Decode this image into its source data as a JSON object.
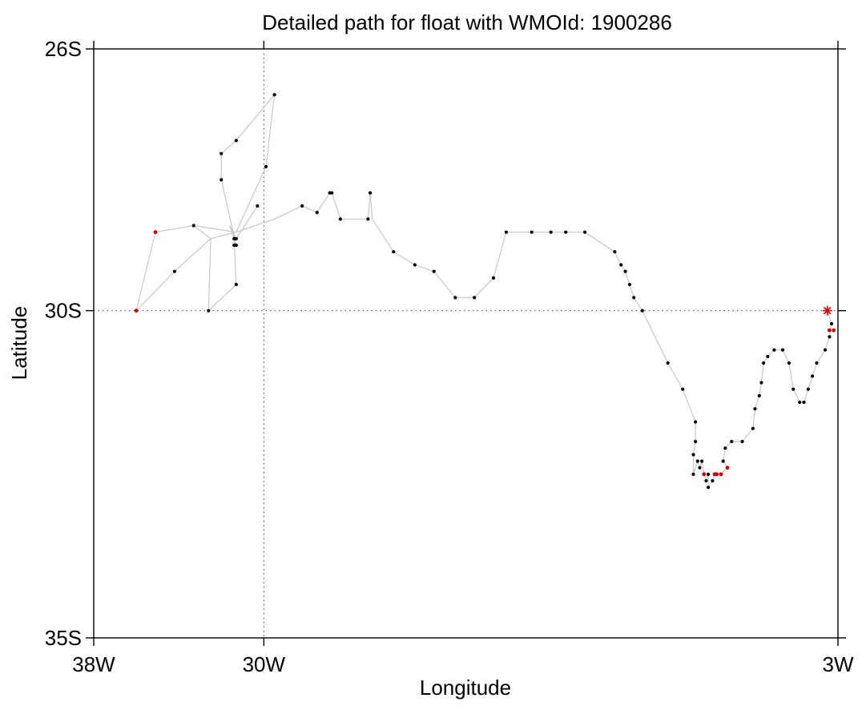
{
  "chart_data": {
    "type": "scatter",
    "title": "Detailed path for float with WMOId: 1900286",
    "xlabel": "Longitude",
    "ylabel": "Latitude",
    "xlim": [
      -38,
      -3
    ],
    "ylim": [
      -35,
      -26
    ],
    "x_ticks": [
      {
        "value": -38,
        "label": "38W"
      },
      {
        "value": -30,
        "label": "30W"
      },
      {
        "value": -3,
        "label": "3W"
      }
    ],
    "y_ticks": [
      {
        "value": -26,
        "label": "26S"
      },
      {
        "value": -30,
        "label": "30S"
      },
      {
        "value": -35,
        "label": "35S"
      }
    ],
    "grid": {
      "style": "dotted",
      "x_values": [
        -30
      ],
      "y_values": [
        -30
      ]
    },
    "colors": {
      "path_line": "#c8c8c8",
      "profile": "#000000",
      "flagged": "#d40000",
      "last_position": "#d40000"
    },
    "series": [
      {
        "type": "path",
        "points": [
          [
            -36.0,
            -30.0
          ],
          [
            -35.1,
            -28.8
          ],
          [
            -33.3,
            -28.7
          ],
          [
            -32.5,
            -28.9
          ],
          [
            -32.6,
            -30.0
          ],
          [
            -31.3,
            -29.6
          ],
          [
            -31.4,
            -28.9
          ],
          [
            -31.6,
            -28.7
          ],
          [
            -31.3,
            -28.9
          ],
          [
            -30.3,
            -28.4
          ],
          [
            -31.3,
            -28.9
          ],
          [
            -31.4,
            -29.0
          ],
          [
            -31.3,
            -29.0
          ],
          [
            -32.0,
            -28.0
          ],
          [
            -32.0,
            -27.6
          ],
          [
            -31.3,
            -27.4
          ],
          [
            -29.5,
            -26.7
          ],
          [
            -29.9,
            -27.8
          ],
          [
            -31.3,
            -28.8
          ],
          [
            -32.5,
            -28.9
          ],
          [
            -34.2,
            -29.4
          ],
          [
            -36.0,
            -30.0
          ],
          [
            -35.1,
            -28.8
          ],
          [
            -33.3,
            -28.7
          ],
          [
            -31.3,
            -28.8
          ],
          [
            -29.5,
            -28.6
          ],
          [
            -28.2,
            -28.4
          ],
          [
            -27.5,
            -28.5
          ],
          [
            -26.9,
            -28.2
          ],
          [
            -26.8,
            -28.2
          ],
          [
            -26.4,
            -28.6
          ],
          [
            -25.1,
            -28.6
          ],
          [
            -25.0,
            -28.2
          ],
          [
            -24.9,
            -28.6
          ],
          [
            -23.9,
            -29.1
          ],
          [
            -22.9,
            -29.3
          ],
          [
            -22.0,
            -29.4
          ],
          [
            -21.0,
            -29.8
          ],
          [
            -20.1,
            -29.8
          ],
          [
            -19.2,
            -29.5
          ],
          [
            -18.6,
            -28.8
          ],
          [
            -17.4,
            -28.8
          ],
          [
            -16.5,
            -28.8
          ],
          [
            -15.8,
            -28.8
          ],
          [
            -14.9,
            -28.8
          ],
          [
            -13.5,
            -29.1
          ],
          [
            -13.2,
            -29.3
          ],
          [
            -13.0,
            -29.4
          ],
          [
            -12.8,
            -29.6
          ],
          [
            -12.6,
            -29.8
          ],
          [
            -12.2,
            -30.0
          ],
          [
            -11.0,
            -30.8
          ],
          [
            -10.3,
            -31.2
          ],
          [
            -9.7,
            -31.7
          ],
          [
            -9.7,
            -32.0
          ],
          [
            -9.8,
            -32.2
          ],
          [
            -9.8,
            -32.5
          ],
          [
            -9.6,
            -32.3
          ],
          [
            -9.5,
            -32.4
          ],
          [
            -9.4,
            -32.3
          ],
          [
            -9.3,
            -32.5
          ],
          [
            -9.2,
            -32.6
          ],
          [
            -9.1,
            -32.5
          ],
          [
            -9.1,
            -32.7
          ],
          [
            -8.9,
            -32.6
          ],
          [
            -8.8,
            -32.5
          ],
          [
            -8.7,
            -32.5
          ],
          [
            -8.5,
            -32.5
          ],
          [
            -8.2,
            -32.4
          ],
          [
            -8.4,
            -32.3
          ],
          [
            -8.3,
            -32.1
          ],
          [
            -8.0,
            -32.0
          ],
          [
            -7.5,
            -32.0
          ],
          [
            -7.0,
            -31.8
          ],
          [
            -6.9,
            -31.5
          ],
          [
            -6.7,
            -31.3
          ],
          [
            -6.6,
            -31.1
          ],
          [
            -6.5,
            -30.8
          ],
          [
            -6.3,
            -30.7
          ],
          [
            -6.0,
            -30.6
          ],
          [
            -5.6,
            -30.6
          ],
          [
            -5.3,
            -30.8
          ],
          [
            -5.1,
            -31.2
          ],
          [
            -4.8,
            -31.4
          ],
          [
            -4.6,
            -31.4
          ],
          [
            -4.4,
            -31.2
          ],
          [
            -4.2,
            -31.0
          ],
          [
            -4.0,
            -30.8
          ],
          [
            -3.6,
            -30.6
          ],
          [
            -3.4,
            -30.4
          ],
          [
            -3.3,
            -30.2
          ],
          [
            -3.5,
            -30.0
          ]
        ]
      },
      {
        "type": "profiles",
        "color_key": "profile",
        "points": [
          [
            -34.2,
            -29.4
          ],
          [
            -33.3,
            -28.7
          ],
          [
            -32.6,
            -30.0
          ],
          [
            -32.0,
            -28.0
          ],
          [
            -32.0,
            -27.6
          ],
          [
            -31.3,
            -27.4
          ],
          [
            -31.3,
            -28.9
          ],
          [
            -31.4,
            -29.0
          ],
          [
            -31.3,
            -29.0
          ],
          [
            -31.4,
            -28.9
          ],
          [
            -31.3,
            -29.6
          ],
          [
            -29.9,
            -27.8
          ],
          [
            -29.5,
            -26.7
          ],
          [
            -30.3,
            -28.4
          ],
          [
            -28.2,
            -28.4
          ],
          [
            -27.5,
            -28.5
          ],
          [
            -26.9,
            -28.2
          ],
          [
            -26.8,
            -28.2
          ],
          [
            -26.4,
            -28.6
          ],
          [
            -25.1,
            -28.6
          ],
          [
            -25.0,
            -28.2
          ],
          [
            -23.9,
            -29.1
          ],
          [
            -22.9,
            -29.3
          ],
          [
            -22.0,
            -29.4
          ],
          [
            -21.0,
            -29.8
          ],
          [
            -20.1,
            -29.8
          ],
          [
            -19.2,
            -29.5
          ],
          [
            -18.6,
            -28.8
          ],
          [
            -17.4,
            -28.8
          ],
          [
            -16.5,
            -28.8
          ],
          [
            -15.8,
            -28.8
          ],
          [
            -14.9,
            -28.8
          ],
          [
            -13.5,
            -29.1
          ],
          [
            -13.2,
            -29.3
          ],
          [
            -13.0,
            -29.4
          ],
          [
            -12.8,
            -29.6
          ],
          [
            -12.6,
            -29.8
          ],
          [
            -12.2,
            -30.0
          ],
          [
            -11.0,
            -30.8
          ],
          [
            -10.3,
            -31.2
          ],
          [
            -9.7,
            -31.7
          ],
          [
            -9.7,
            -32.0
          ],
          [
            -9.8,
            -32.2
          ],
          [
            -9.8,
            -32.5
          ],
          [
            -9.6,
            -32.3
          ],
          [
            -9.5,
            -32.4
          ],
          [
            -9.4,
            -32.3
          ],
          [
            -9.2,
            -32.6
          ],
          [
            -9.1,
            -32.5
          ],
          [
            -9.1,
            -32.7
          ],
          [
            -8.9,
            -32.6
          ],
          [
            -8.4,
            -32.3
          ],
          [
            -8.3,
            -32.1
          ],
          [
            -8.0,
            -32.0
          ],
          [
            -7.5,
            -32.0
          ],
          [
            -7.0,
            -31.8
          ],
          [
            -6.9,
            -31.5
          ],
          [
            -6.7,
            -31.3
          ],
          [
            -6.6,
            -31.1
          ],
          [
            -6.5,
            -30.8
          ],
          [
            -6.3,
            -30.7
          ],
          [
            -6.0,
            -30.6
          ],
          [
            -5.6,
            -30.6
          ],
          [
            -5.3,
            -30.8
          ],
          [
            -5.1,
            -31.2
          ],
          [
            -4.8,
            -31.4
          ],
          [
            -4.6,
            -31.4
          ],
          [
            -4.4,
            -31.2
          ],
          [
            -4.2,
            -31.0
          ],
          [
            -4.0,
            -30.8
          ],
          [
            -3.6,
            -30.6
          ],
          [
            -3.4,
            -30.4
          ],
          [
            -3.3,
            -30.2
          ]
        ]
      },
      {
        "type": "flagged",
        "color_key": "flagged",
        "points": [
          [
            -36.0,
            -30.0
          ],
          [
            -35.1,
            -28.8
          ],
          [
            -9.3,
            -32.5
          ],
          [
            -8.8,
            -32.5
          ],
          [
            -8.7,
            -32.5
          ],
          [
            -8.5,
            -32.5
          ],
          [
            -8.2,
            -32.4
          ],
          [
            -3.4,
            -30.3
          ],
          [
            -3.2,
            -30.3
          ]
        ]
      },
      {
        "type": "last_position",
        "marker": "asterisk",
        "color_key": "last_position",
        "points": [
          [
            -3.5,
            -30.0
          ]
        ]
      }
    ]
  }
}
